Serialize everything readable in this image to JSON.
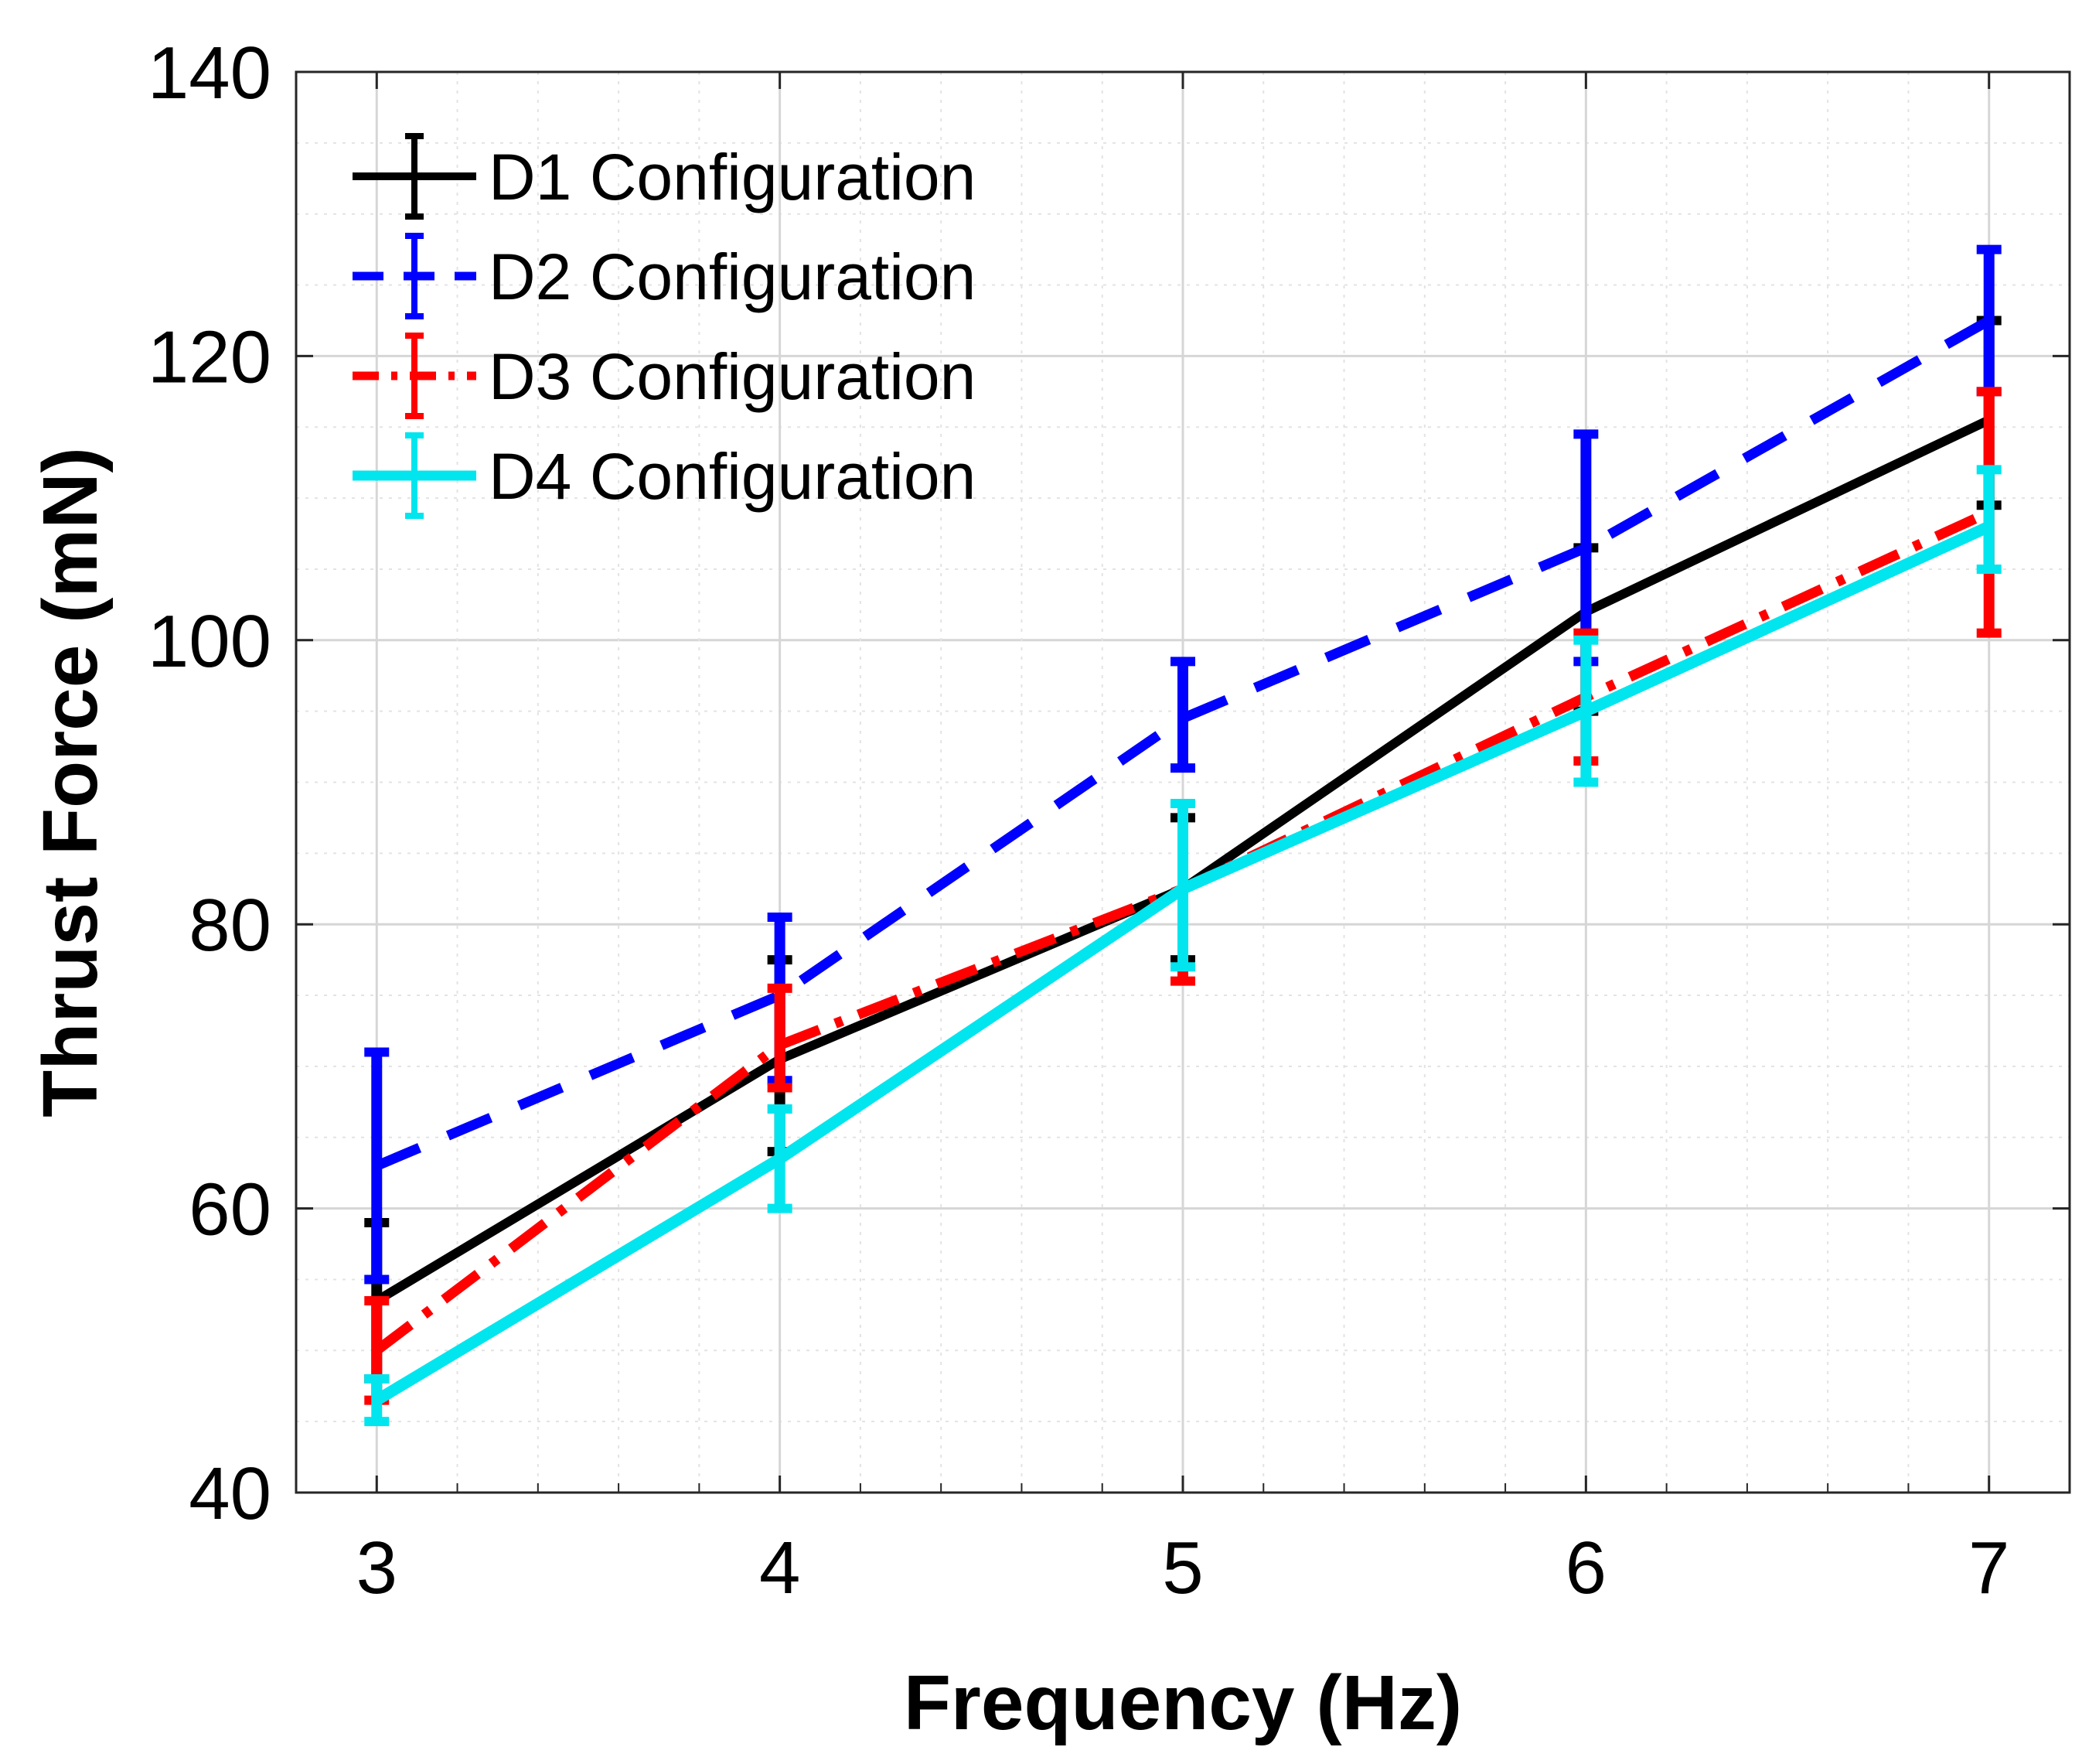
{
  "chart_data": {
    "type": "line",
    "title": "",
    "xlabel": "Frequency (Hz)",
    "ylabel": "Thrust Force (mN)",
    "xlim": [
      2.8,
      7.2
    ],
    "ylim": [
      40,
      140
    ],
    "xticks": [
      3,
      4,
      5,
      6,
      7
    ],
    "yticks": [
      40,
      60,
      80,
      100,
      120,
      140
    ],
    "grid": true,
    "minor_grid": true,
    "legend_position": "top-left",
    "x": [
      3,
      4,
      5,
      6,
      7
    ],
    "series": [
      {
        "name": "D1 Configuration",
        "color": "#000000",
        "line_style": "solid",
        "values": [
          53.5,
          70.5,
          82.5,
          102,
          115.5
        ],
        "err_low": [
          48,
          64,
          77.5,
          95,
          109.5
        ],
        "err_high": [
          59,
          77.5,
          87.5,
          106.5,
          122.5
        ]
      },
      {
        "name": "D2 Configuration",
        "color": "#0000ff",
        "line_style": "dashed",
        "values": [
          63,
          75,
          94.5,
          106.5,
          122.5
        ],
        "err_low": [
          55,
          69,
          91,
          98.5,
          117.5
        ],
        "err_high": [
          71,
          80.5,
          98.5,
          114.5,
          127.5
        ]
      },
      {
        "name": "D3 Configuration",
        "color": "#ff0000",
        "line_style": "dash-dot",
        "values": [
          50,
          71.5,
          82.5,
          96,
          109
        ],
        "err_low": [
          46.5,
          68.5,
          76,
          91.5,
          100.5
        ],
        "err_high": [
          53.5,
          75.5,
          88.5,
          100.5,
          117.5
        ]
      },
      {
        "name": "D4 Configuration",
        "color": "#00e5ee",
        "line_style": "solid",
        "values": [
          46.5,
          63.5,
          82.5,
          95,
          108
        ],
        "err_low": [
          45,
          60,
          77,
          90,
          105
        ],
        "err_high": [
          48,
          67,
          88.5,
          100,
          112
        ]
      }
    ]
  }
}
